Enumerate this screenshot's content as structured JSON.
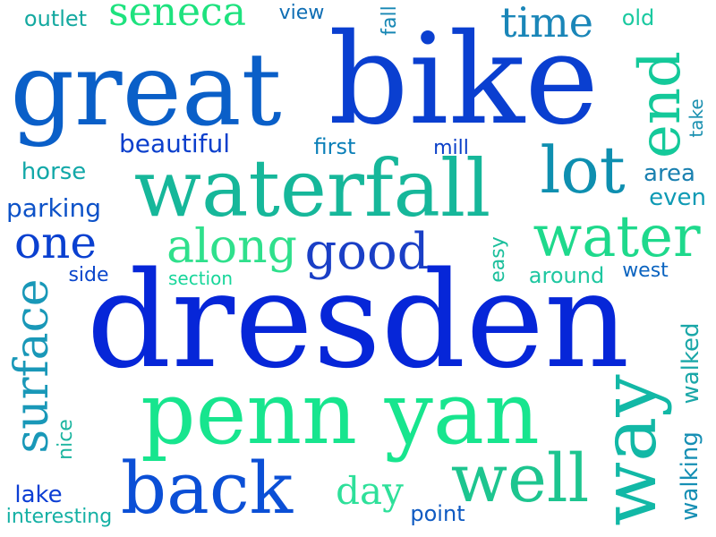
{
  "words": [
    {
      "text": "great",
      "color": "#0a5fc8"
    },
    {
      "text": "bike",
      "color": "#0a3fd0"
    },
    {
      "text": "waterfall",
      "color": "#16b79a"
    },
    {
      "text": "dresden",
      "color": "#0626d8"
    },
    {
      "text": "penn yan",
      "color": "#17e58e"
    },
    {
      "text": "back",
      "color": "#0b4fd6"
    },
    {
      "text": "well",
      "color": "#1dc58f"
    },
    {
      "text": "way",
      "color": "#12b8a6"
    },
    {
      "text": "lot",
      "color": "#0e8fb0"
    },
    {
      "text": "end",
      "color": "#14c99a"
    },
    {
      "text": "water",
      "color": "#1ed98c"
    },
    {
      "text": "along",
      "color": "#2fe08c"
    },
    {
      "text": "good",
      "color": "#1a3fc6"
    },
    {
      "text": "one",
      "color": "#0a40d0"
    },
    {
      "text": "surface",
      "color": "#1998b8"
    },
    {
      "text": "time",
      "color": "#1a86b8"
    },
    {
      "text": "seneca",
      "color": "#1ee27e"
    },
    {
      "text": "outlet",
      "color": "#14a9a0"
    },
    {
      "text": "view",
      "color": "#0f6eb4"
    },
    {
      "text": "fall",
      "color": "#1787b4"
    },
    {
      "text": "old",
      "color": "#1ac9a0"
    },
    {
      "text": "take",
      "color": "#1a90b0"
    },
    {
      "text": "beautiful",
      "color": "#0b3fcc"
    },
    {
      "text": "first",
      "color": "#0a7fb8"
    },
    {
      "text": "mill",
      "color": "#0a3fc8"
    },
    {
      "text": "horse",
      "color": "#12a8a8"
    },
    {
      "text": "parking",
      "color": "#0d52c8"
    },
    {
      "text": "area",
      "color": "#1a80b0"
    },
    {
      "text": "even",
      "color": "#0e9ab4"
    },
    {
      "text": "side",
      "color": "#0a46cc"
    },
    {
      "text": "section",
      "color": "#17d69a"
    },
    {
      "text": "easy",
      "color": "#1bbf9c"
    },
    {
      "text": "around",
      "color": "#1ec7a0"
    },
    {
      "text": "west",
      "color": "#0c64c0"
    },
    {
      "text": "walked",
      "color": "#1aa7a8"
    },
    {
      "text": "walking",
      "color": "#168fb4"
    },
    {
      "text": "nice",
      "color": "#1cb5a0"
    },
    {
      "text": "day",
      "color": "#2ee09a"
    },
    {
      "text": "point",
      "color": "#0e5ac2"
    },
    {
      "text": "lake",
      "color": "#0c3ed4"
    },
    {
      "text": "interesting",
      "color": "#14b0a4"
    }
  ]
}
